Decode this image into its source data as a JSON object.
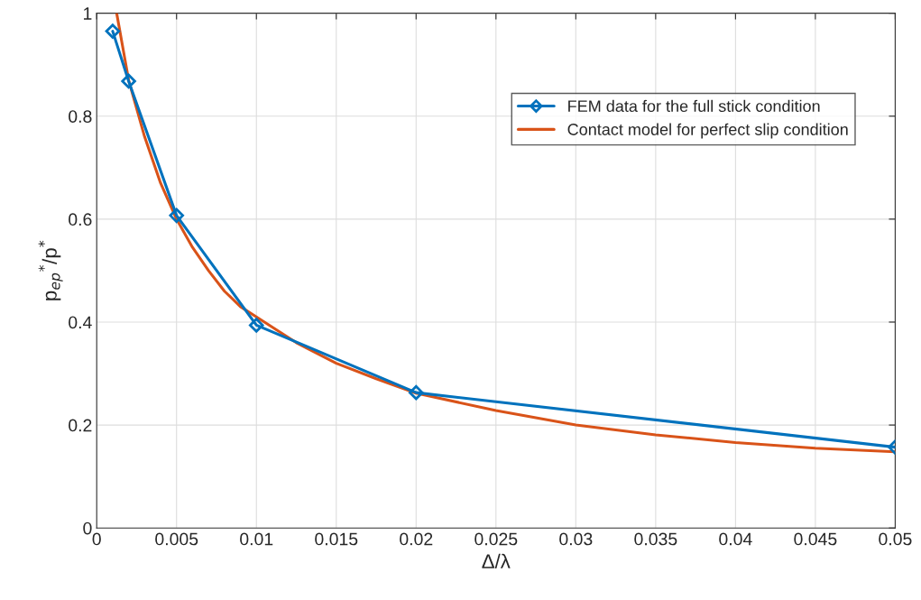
{
  "chart_data": {
    "type": "line",
    "xlabel": "Δ/λ",
    "ylabel": "p$_{ep}$$^{*}$/p$^{*}$",
    "xlim": [
      0,
      0.05
    ],
    "ylim": [
      0,
      1
    ],
    "xticks": [
      0,
      0.005,
      0.01,
      0.015,
      0.02,
      0.025,
      0.03,
      0.035,
      0.04,
      0.045,
      0.05
    ],
    "yticks": [
      0,
      0.2,
      0.4,
      0.6,
      0.8,
      1
    ],
    "grid": true,
    "legend": "top right",
    "series": [
      {
        "name": "FEM data for the full stick condition",
        "color": "#0072bd",
        "marker": "diamond",
        "x": [
          0.001,
          0.002,
          0.005,
          0.01,
          0.02,
          0.05
        ],
        "values": [
          0.965,
          0.868,
          0.607,
          0.394,
          0.263,
          0.157
        ]
      },
      {
        "name": "Contact model for perfect slip condition",
        "color": "#d95319",
        "marker": "none",
        "x": [
          0.00125,
          0.002,
          0.003,
          0.004,
          0.005,
          0.006,
          0.007,
          0.008,
          0.009,
          0.01,
          0.0125,
          0.015,
          0.0175,
          0.02,
          0.025,
          0.03,
          0.035,
          0.04,
          0.045,
          0.05
        ],
        "values": [
          1.0,
          0.87,
          0.76,
          0.67,
          0.6,
          0.545,
          0.5,
          0.46,
          0.43,
          0.41,
          0.36,
          0.32,
          0.29,
          0.262,
          0.228,
          0.2,
          0.181,
          0.166,
          0.155,
          0.148
        ]
      }
    ]
  }
}
